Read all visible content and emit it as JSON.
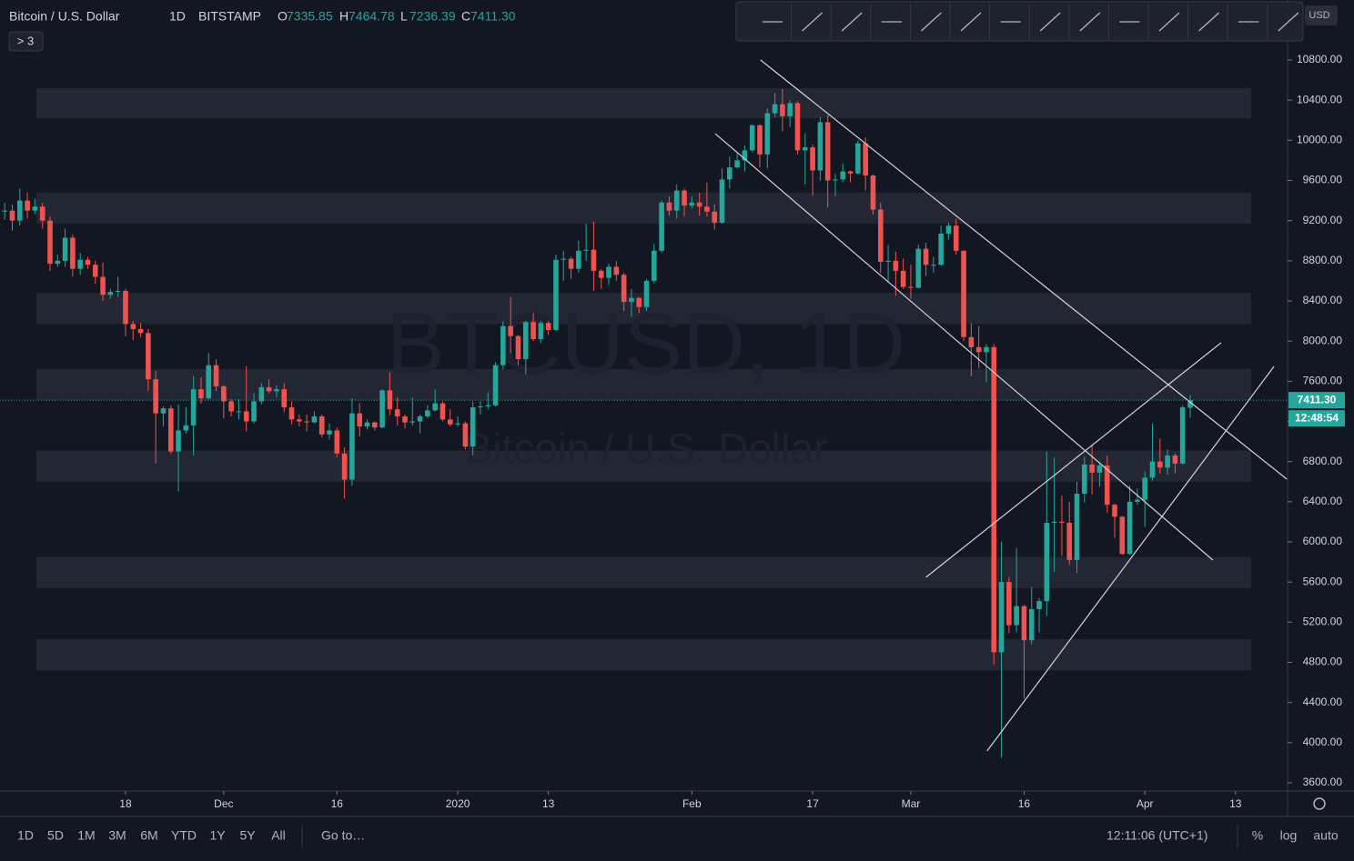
{
  "chart_data": {
    "type": "candlestick",
    "symbol": "Bitcoin / U.S. Dollar",
    "interval": "1D",
    "exchange": "BITSTAMP",
    "ohlc_letters": [
      "O",
      "H",
      "L",
      "C"
    ],
    "ohlc_labels": [
      "7335.85",
      "7464.78",
      "7236.39",
      "7411.30"
    ],
    "indicator_badge": "> 3",
    "currency": "USD",
    "countdown": "12:48:54",
    "watermark": "BTCUSD, 1D",
    "watermark_sub": "Bitcoin / U.S. Dollar",
    "up_color": "#26a69a",
    "down_color": "#ef5350",
    "ylim": [
      3600,
      10800
    ],
    "yticks": [
      {
        "value": 3600,
        "label": "3600.00"
      },
      {
        "value": 4000,
        "label": "4000.00"
      },
      {
        "value": 4400,
        "label": "4400.00"
      },
      {
        "value": 4800,
        "label": "4800.00"
      },
      {
        "value": 5200,
        "label": "5200.00"
      },
      {
        "value": 5600,
        "label": "5600.00"
      },
      {
        "value": 6000,
        "label": "6000.00"
      },
      {
        "value": 6400,
        "label": "6400.00"
      },
      {
        "value": 6800,
        "label": "6800.00"
      },
      {
        "value": 7200,
        "label": "7200.00"
      },
      {
        "value": 7600,
        "label": "7600.00"
      },
      {
        "value": 8000,
        "label": "8000.00"
      },
      {
        "value": 8400,
        "label": "8400.00"
      },
      {
        "value": 8800,
        "label": "8800.00"
      },
      {
        "value": 9200,
        "label": "9200.00"
      },
      {
        "value": 9600,
        "label": "9600.00"
      },
      {
        "value": 10000,
        "label": "10000.00"
      },
      {
        "value": 10400,
        "label": "10400.00"
      },
      {
        "value": 10800,
        "label": "10800.00"
      }
    ],
    "xticks": [
      {
        "value": 16,
        "label": "18"
      },
      {
        "value": 29,
        "label": "Dec"
      },
      {
        "value": 44,
        "label": "16"
      },
      {
        "value": 60,
        "label": "2020"
      },
      {
        "value": 72,
        "label": "13"
      },
      {
        "value": 91,
        "label": "Feb"
      },
      {
        "value": 107,
        "label": "17"
      },
      {
        "value": 120,
        "label": "Mar"
      },
      {
        "value": 135,
        "label": "16"
      },
      {
        "value": 151,
        "label": "Apr"
      },
      {
        "value": 163,
        "label": "13"
      }
    ],
    "zones": [
      [
        10520,
        10220
      ],
      [
        9480,
        9170
      ],
      [
        8480,
        8170
      ],
      [
        7720,
        7410
      ],
      [
        6910,
        6600
      ],
      [
        5850,
        5540
      ],
      [
        5030,
        4720
      ]
    ],
    "trendlines": [
      [
        [
          100.1,
          10800
        ],
        [
          169.8,
          6625
        ]
      ],
      [
        [
          94.1,
          10066
        ],
        [
          160.0,
          5819
        ]
      ],
      [
        [
          122.0,
          5647
        ],
        [
          161.1,
          7984
        ]
      ],
      [
        [
          130.1,
          3917
        ],
        [
          168.1,
          7748
        ]
      ]
    ],
    "candles": [
      [
        9290,
        9380,
        9210,
        9300
      ],
      [
        9300,
        9360,
        9100,
        9200
      ],
      [
        9200,
        9520,
        9150,
        9400
      ],
      [
        9400,
        9480,
        9220,
        9300
      ],
      [
        9300,
        9420,
        9260,
        9340
      ],
      [
        9340,
        9380,
        9120,
        9200
      ],
      [
        9200,
        9240,
        8700,
        8770
      ],
      [
        8770,
        8860,
        8740,
        8800
      ],
      [
        8800,
        9120,
        8740,
        9030
      ],
      [
        9030,
        9060,
        8640,
        8720
      ],
      [
        8720,
        8880,
        8660,
        8810
      ],
      [
        8810,
        8840,
        8720,
        8760
      ],
      [
        8760,
        8800,
        8570,
        8640
      ],
      [
        8640,
        8780,
        8400,
        8460
      ],
      [
        8460,
        8520,
        8420,
        8490
      ],
      [
        8490,
        8640,
        8440,
        8500
      ],
      [
        8500,
        8520,
        8050,
        8170
      ],
      [
        8170,
        8200,
        8010,
        8120
      ],
      [
        8120,
        8180,
        8040,
        8080
      ],
      [
        8080,
        8120,
        7500,
        7620
      ],
      [
        7620,
        7700,
        6780,
        7280
      ],
      [
        7280,
        7350,
        7150,
        7330
      ],
      [
        7330,
        7360,
        6880,
        6900
      ],
      [
        6900,
        7370,
        6500,
        7110
      ],
      [
        7110,
        7340,
        7080,
        7160
      ],
      [
        7160,
        7650,
        6860,
        7520
      ],
      [
        7520,
        7640,
        7380,
        7430
      ],
      [
        7430,
        7880,
        7420,
        7760
      ],
      [
        7760,
        7820,
        7500,
        7550
      ],
      [
        7550,
        7560,
        7230,
        7400
      ],
      [
        7400,
        7420,
        7250,
        7300
      ],
      [
        7300,
        7420,
        7220,
        7300
      ],
      [
        7300,
        7750,
        7100,
        7200
      ],
      [
        7200,
        7480,
        7180,
        7400
      ],
      [
        7400,
        7580,
        7370,
        7540
      ],
      [
        7540,
        7620,
        7480,
        7500
      ],
      [
        7500,
        7560,
        7440,
        7520
      ],
      [
        7520,
        7580,
        7290,
        7340
      ],
      [
        7340,
        7400,
        7170,
        7220
      ],
      [
        7220,
        7270,
        7150,
        7200
      ],
      [
        7200,
        7270,
        7100,
        7190
      ],
      [
        7190,
        7300,
        7180,
        7250
      ],
      [
        7250,
        7270,
        7040,
        7070
      ],
      [
        7070,
        7180,
        7020,
        7110
      ],
      [
        7110,
        7140,
        6840,
        6880
      ],
      [
        6880,
        6940,
        6430,
        6620
      ],
      [
        6620,
        7430,
        6560,
        7280
      ],
      [
        7280,
        7380,
        7050,
        7150
      ],
      [
        7150,
        7220,
        7120,
        7190
      ],
      [
        7190,
        7200,
        7110,
        7140
      ],
      [
        7140,
        7520,
        7130,
        7510
      ],
      [
        7510,
        7690,
        7260,
        7320
      ],
      [
        7320,
        7440,
        7160,
        7250
      ],
      [
        7250,
        7270,
        7130,
        7190
      ],
      [
        7190,
        7440,
        7160,
        7200
      ],
      [
        7200,
        7270,
        7080,
        7250
      ],
      [
        7250,
        7360,
        7230,
        7310
      ],
      [
        7310,
        7520,
        7300,
        7380
      ],
      [
        7380,
        7400,
        7200,
        7220
      ],
      [
        7220,
        7320,
        7150,
        7170
      ],
      [
        7170,
        7250,
        7150,
        7180
      ],
      [
        7180,
        7200,
        6920,
        6950
      ],
      [
        6950,
        7400,
        6860,
        7340
      ],
      [
        7340,
        7400,
        7270,
        7350
      ],
      [
        7350,
        7490,
        7320,
        7360
      ],
      [
        7360,
        7790,
        7350,
        7760
      ],
      [
        7760,
        8200,
        7720,
        8150
      ],
      [
        8150,
        8440,
        7880,
        8050
      ],
      [
        8050,
        8060,
        7760,
        7820
      ],
      [
        7820,
        8200,
        7670,
        8190
      ],
      [
        8190,
        8280,
        8000,
        8020
      ],
      [
        8020,
        8200,
        7980,
        8180
      ],
      [
        8180,
        8200,
        8060,
        8110
      ],
      [
        8110,
        8860,
        8100,
        8810
      ],
      [
        8810,
        8900,
        8600,
        8820
      ],
      [
        8820,
        8840,
        8620,
        8720
      ],
      [
        8720,
        9000,
        8680,
        8900
      ],
      [
        8900,
        9170,
        8800,
        8910
      ],
      [
        8910,
        9190,
        8500,
        8700
      ],
      [
        8700,
        8720,
        8520,
        8630
      ],
      [
        8630,
        8770,
        8560,
        8740
      ],
      [
        8740,
        8800,
        8600,
        8660
      ],
      [
        8660,
        8680,
        8300,
        8390
      ],
      [
        8390,
        8520,
        8240,
        8430
      ],
      [
        8430,
        8440,
        8280,
        8340
      ],
      [
        8340,
        8620,
        8300,
        8600
      ],
      [
        8600,
        8970,
        8570,
        8900
      ],
      [
        8900,
        9400,
        8880,
        9380
      ],
      [
        9380,
        9440,
        9250,
        9300
      ],
      [
        9300,
        9560,
        9220,
        9500
      ],
      [
        9500,
        9520,
        9240,
        9350
      ],
      [
        9350,
        9440,
        9320,
        9380
      ],
      [
        9380,
        9480,
        9250,
        9340
      ],
      [
        9340,
        9580,
        9240,
        9290
      ],
      [
        9290,
        9360,
        9110,
        9180
      ],
      [
        9180,
        9720,
        9170,
        9610
      ],
      [
        9610,
        9840,
        9520,
        9730
      ],
      [
        9730,
        9870,
        9720,
        9800
      ],
      [
        9800,
        9950,
        9690,
        9900
      ],
      [
        9900,
        10160,
        9880,
        10150
      ],
      [
        10150,
        10160,
        9730,
        9860
      ],
      [
        9860,
        10320,
        9720,
        10270
      ],
      [
        10270,
        10470,
        10230,
        10360
      ],
      [
        10360,
        10510,
        10090,
        10240
      ],
      [
        10240,
        10400,
        10130,
        10370
      ],
      [
        10370,
        10390,
        9860,
        9900
      ],
      [
        9900,
        10070,
        9560,
        9930
      ],
      [
        9930,
        9960,
        9450,
        9700
      ],
      [
        9700,
        10230,
        9600,
        10180
      ],
      [
        10180,
        10250,
        9330,
        9600
      ],
      [
        9600,
        9670,
        9440,
        9610
      ],
      [
        9610,
        9770,
        9580,
        9690
      ],
      [
        9690,
        9700,
        9580,
        9670
      ],
      [
        9670,
        10000,
        9660,
        9970
      ],
      [
        9970,
        10030,
        9500,
        9650
      ],
      [
        9650,
        9660,
        9260,
        9310
      ],
      [
        9310,
        9380,
        8680,
        8790
      ],
      [
        8790,
        8960,
        8580,
        8800
      ],
      [
        8800,
        8890,
        8450,
        8700
      ],
      [
        8700,
        8820,
        8520,
        8540
      ],
      [
        8540,
        8760,
        8420,
        8530
      ],
      [
        8530,
        8960,
        8530,
        8920
      ],
      [
        8920,
        8980,
        8650,
        8760
      ],
      [
        8760,
        8840,
        8680,
        8760
      ],
      [
        8760,
        9150,
        8750,
        9070
      ],
      [
        9070,
        9180,
        9010,
        9150
      ],
      [
        9150,
        9220,
        8860,
        8900
      ],
      [
        8900,
        8900,
        8000,
        8040
      ],
      [
        8040,
        8180,
        7650,
        7940
      ],
      [
        7940,
        8150,
        7730,
        7890
      ],
      [
        7890,
        7970,
        7590,
        7940
      ],
      [
        7940,
        7970,
        4780,
        4900
      ],
      [
        4900,
        6000,
        3850,
        5600
      ],
      [
        5600,
        5650,
        5090,
        5170
      ],
      [
        5170,
        5940,
        5100,
        5360
      ],
      [
        5360,
        5370,
        4440,
        5020
      ],
      [
        5020,
        5550,
        4980,
        5330
      ],
      [
        5330,
        5440,
        5100,
        5410
      ],
      [
        5410,
        6900,
        5260,
        6190
      ],
      [
        6190,
        6840,
        5700,
        6200
      ],
      [
        6200,
        6460,
        5860,
        6190
      ],
      [
        6190,
        6400,
        5770,
        5820
      ],
      [
        5820,
        6600,
        5690,
        6480
      ],
      [
        6480,
        6850,
        6390,
        6770
      ],
      [
        6770,
        6960,
        6470,
        6690
      ],
      [
        6690,
        6790,
        6550,
        6760
      ],
      [
        6760,
        6860,
        6290,
        6370
      ],
      [
        6370,
        6380,
        6040,
        6250
      ],
      [
        6250,
        6260,
        5870,
        5880
      ],
      [
        5880,
        6560,
        5870,
        6400
      ],
      [
        6400,
        6530,
        6370,
        6420
      ],
      [
        6420,
        6700,
        6150,
        6640
      ],
      [
        6640,
        7180,
        6610,
        6800
      ],
      [
        6800,
        7030,
        6680,
        6740
      ],
      [
        6740,
        6920,
        6670,
        6860
      ],
      [
        6860,
        6880,
        6680,
        6780
      ],
      [
        6780,
        7360,
        6770,
        7340
      ],
      [
        7335.85,
        7464.78,
        7236.39,
        7411.3
      ]
    ]
  },
  "bottom_bar": {
    "ranges": [
      "1D",
      "5D",
      "1M",
      "3M",
      "6M",
      "YTD",
      "1Y",
      "5Y",
      "All"
    ],
    "goto": "Go to…",
    "clock": "12:11:06 (UTC+1)",
    "options": [
      "%",
      "log",
      "auto"
    ]
  }
}
